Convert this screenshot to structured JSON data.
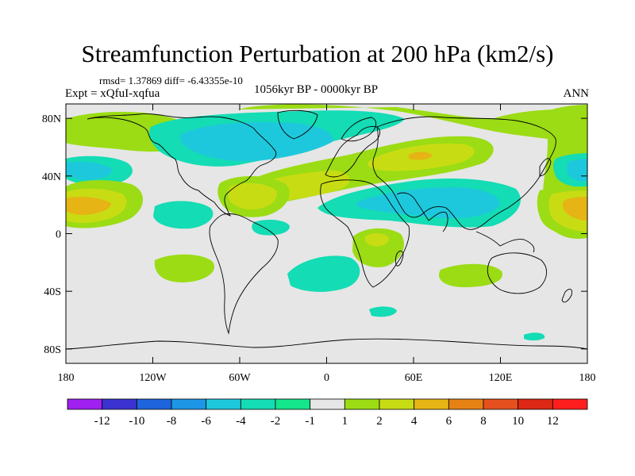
{
  "chart_data": {
    "type": "heatmap",
    "title": "Streamfunction Perturbation at 200 hPa (km2/s)",
    "stats": "rmsd= 1.37869  diff= -6.43355e-10",
    "experiment": "Expt = xQfuI-xqfua",
    "period": "1056kyr BP - 0000kyr BP",
    "season": "ANN",
    "x_ticks": [
      "180",
      "120W",
      "60W",
      "0",
      "60E",
      "120E",
      "180"
    ],
    "x_tick_values": [
      -180,
      -120,
      -60,
      0,
      60,
      120,
      180
    ],
    "y_ticks": [
      "80N",
      "40N",
      "0",
      "40S",
      "80S"
    ],
    "y_tick_values": [
      80,
      40,
      0,
      -40,
      -80
    ],
    "xlim": [
      -180,
      180
    ],
    "ylim": [
      -90,
      90
    ],
    "colorbar": {
      "labels": [
        "-12",
        "-10",
        "-8",
        "-6",
        "-4",
        "-2",
        "-1",
        "1",
        "2",
        "4",
        "6",
        "8",
        "10",
        "12"
      ],
      "colors": [
        "#a020f0",
        "#3c32d2",
        "#1e64dc",
        "#1e96e6",
        "#1ec8dc",
        "#14dcb4",
        "#14e68c",
        "#e6e6e6",
        "#9bdc14",
        "#c8dc14",
        "#e6b414",
        "#e68214",
        "#e6501e",
        "#dc2814",
        "#ff1e1e"
      ]
    },
    "regions": [
      {
        "name": "northern-midlatitude-negative-band",
        "value": -2,
        "center": [
          -40,
          65
        ]
      },
      {
        "name": "north-africa-asia-negative-band",
        "value": -2,
        "center": [
          60,
          25
        ]
      },
      {
        "name": "north-atlantic-europe-positive-band",
        "value": 2,
        "center": [
          20,
          47
        ]
      },
      {
        "name": "tropical-atlantic-positive-band",
        "value": 2,
        "center": [
          -45,
          30
        ]
      },
      {
        "name": "central-pacific-positive-core",
        "value": 4,
        "center": [
          -165,
          20
        ]
      },
      {
        "name": "east-pacific-negative",
        "value": -2,
        "center": [
          -160,
          45
        ]
      }
    ]
  }
}
